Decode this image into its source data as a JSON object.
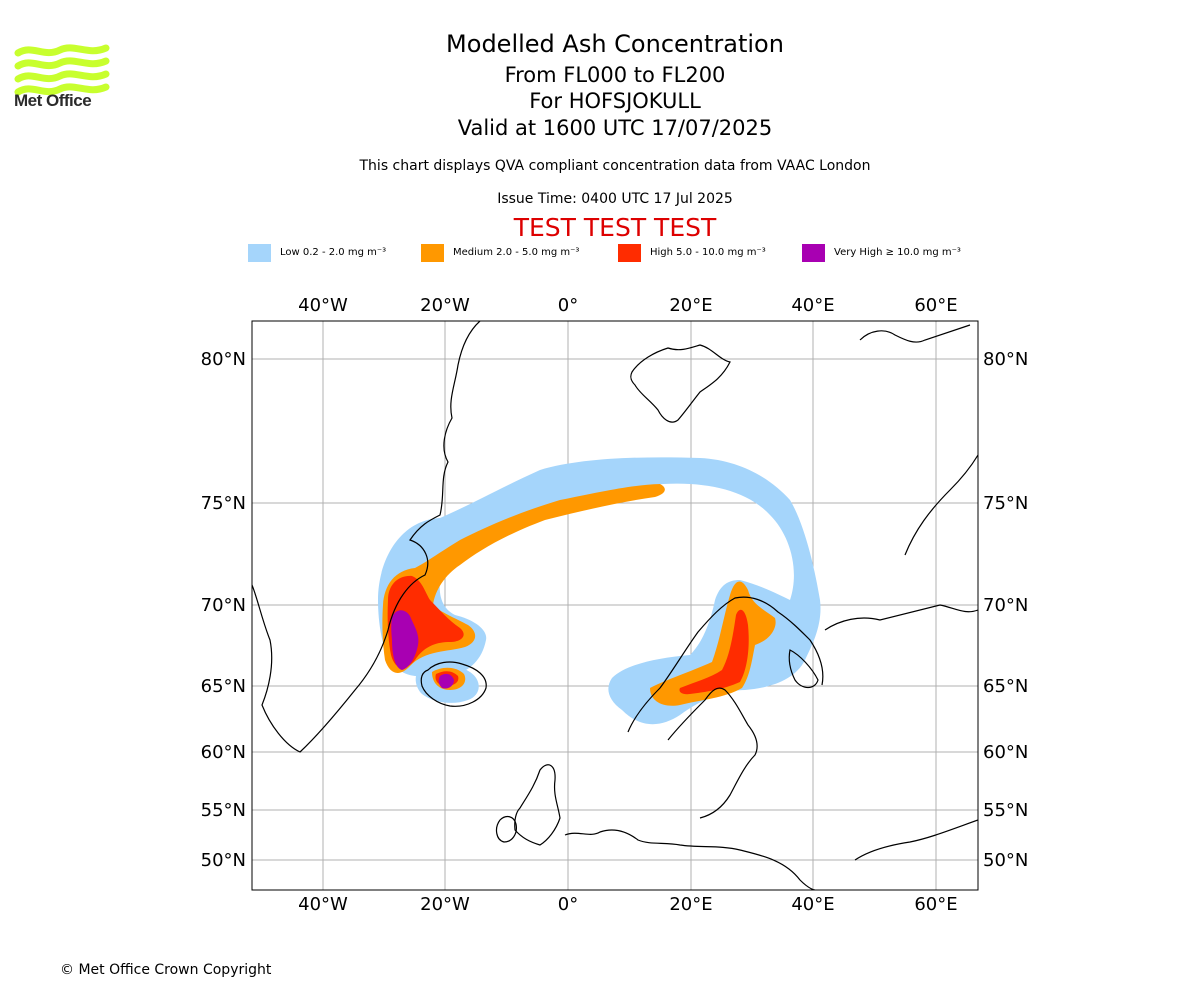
{
  "brand": {
    "name": "Met Office",
    "logo_color": "#c8ff2e"
  },
  "titles": {
    "main": "Modelled Ash Concentration",
    "levels": "From FL000 to FL200",
    "volcano": "For HOFSJOKULL",
    "valid": "Valid at 1600 UTC 17/07/2025",
    "description": "This chart displays QVA compliant concentration data from VAAC London",
    "issue": "Issue Time: 0400 UTC 17 Jul 2025",
    "test_banner": "TEST TEST TEST"
  },
  "legend": [
    {
      "label": "Low 0.2 - 2.0 mg m⁻³",
      "color": "#a5d5fb"
    },
    {
      "label": "Medium 2.0 - 5.0 mg m⁻³",
      "color": "#ff9800"
    },
    {
      "label": "High 5.0 - 10.0 mg m⁻³",
      "color": "#ff2c00"
    },
    {
      "label": "Very High ≥ 10.0 mg m⁻³",
      "color": "#a800b2"
    }
  ],
  "map": {
    "longitude_ticks": [
      "40°W",
      "20°W",
      "0°",
      "20°E",
      "40°E",
      "60°E"
    ],
    "latitude_ticks": [
      "80°N",
      "75°N",
      "70°N",
      "65°N",
      "60°N",
      "55°N",
      "50°N"
    ],
    "grid": true,
    "coastline_color": "#000000",
    "grid_color": "#b0b0b0"
  },
  "footer": {
    "copyright": "© Met Office Crown Copyright"
  }
}
